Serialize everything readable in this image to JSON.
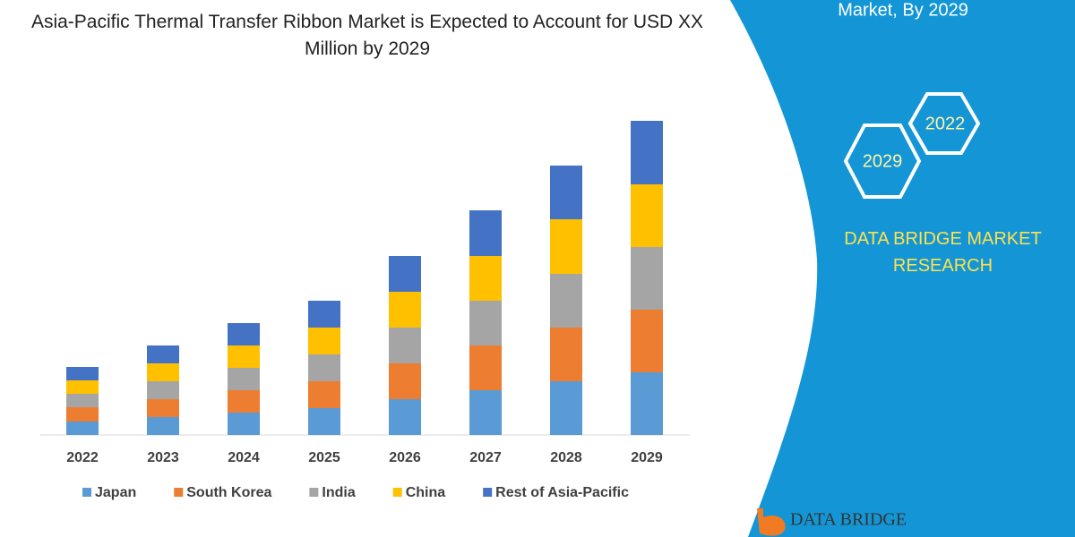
{
  "chart_data": {
    "type": "stacked-bar",
    "title": "Asia-Pacific Thermal Transfer Ribbon Market is Expected to Account for USD XX Million by 2029",
    "categories": [
      "2022",
      "2023",
      "2024",
      "2025",
      "2026",
      "2027",
      "2028",
      "2029"
    ],
    "series": [
      {
        "name": "Japan",
        "color": "#5b9bd5",
        "values": [
          15,
          20,
          25,
          30,
          40,
          50,
          60,
          70
        ]
      },
      {
        "name": "South Korea",
        "color": "#ed7d31",
        "values": [
          16,
          20,
          25,
          30,
          40,
          50,
          60,
          70
        ]
      },
      {
        "name": "India",
        "color": "#a5a5a5",
        "values": [
          15,
          20,
          25,
          30,
          40,
          50,
          60,
          70
        ]
      },
      {
        "name": "China",
        "color": "#ffc000",
        "values": [
          15,
          20,
          25,
          30,
          40,
          50,
          61,
          70
        ]
      },
      {
        "name": "Rest of Asia-Pacific",
        "color": "#4472c4",
        "values": [
          15,
          20,
          25,
          30,
          40,
          51,
          60,
          71
        ]
      }
    ],
    "ylim": [
      0,
      360
    ]
  },
  "side_panel": {
    "heading": "Market, By 2029",
    "hexagons": [
      "2022",
      "2029"
    ],
    "brand_text": "DATA BRIDGE MARKET RESEARCH",
    "logo_text": "DATA BRIDGE"
  }
}
